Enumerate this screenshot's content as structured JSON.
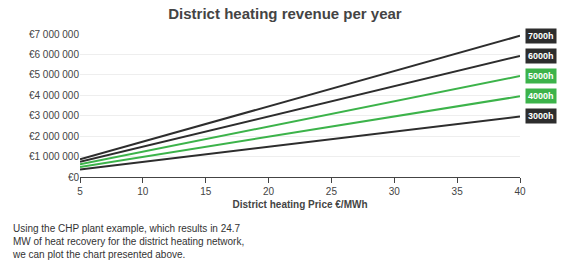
{
  "chart_data": {
    "type": "line",
    "title": "District heating revenue per year",
    "xlabel": "District heating Price €/MWh",
    "x": [
      5,
      40
    ],
    "series": [
      {
        "name": "7000h",
        "color": "#2d2d2d",
        "values": [
          864500,
          6916000
        ]
      },
      {
        "name": "6000h",
        "color": "#2d2d2d",
        "values": [
          741000,
          5928000
        ]
      },
      {
        "name": "5000h",
        "color": "#3cb34a",
        "values": [
          617500,
          4940000
        ]
      },
      {
        "name": "4000h",
        "color": "#3cb34a",
        "values": [
          494000,
          3952000
        ]
      },
      {
        "name": "3000h",
        "color": "#2d2d2d",
        "values": [
          370500,
          2964000
        ]
      }
    ],
    "xlim": [
      5,
      40
    ],
    "ylim": [
      0,
      7000000
    ],
    "xticks": [
      5,
      10,
      15,
      20,
      25,
      30,
      35,
      40
    ],
    "yticks": [
      {
        "value": 0,
        "label": "€0"
      },
      {
        "value": 1000000,
        "label": "€1 000 000"
      },
      {
        "value": 2000000,
        "label": "€2 000 000"
      },
      {
        "value": 3000000,
        "label": "€3 000 000"
      },
      {
        "value": 4000000,
        "label": "€4 000 000"
      },
      {
        "value": 5000000,
        "label": "€5 000 000"
      },
      {
        "value": 6000000,
        "label": "€6 000 000"
      },
      {
        "value": 7000000,
        "label": "€7 000 000"
      }
    ],
    "grid": true,
    "annotations": [
      "Using the CHP plant example, which results in 24.7\nMW of heat recovery for the district heating network,\nwe can plot the chart presented above."
    ]
  }
}
